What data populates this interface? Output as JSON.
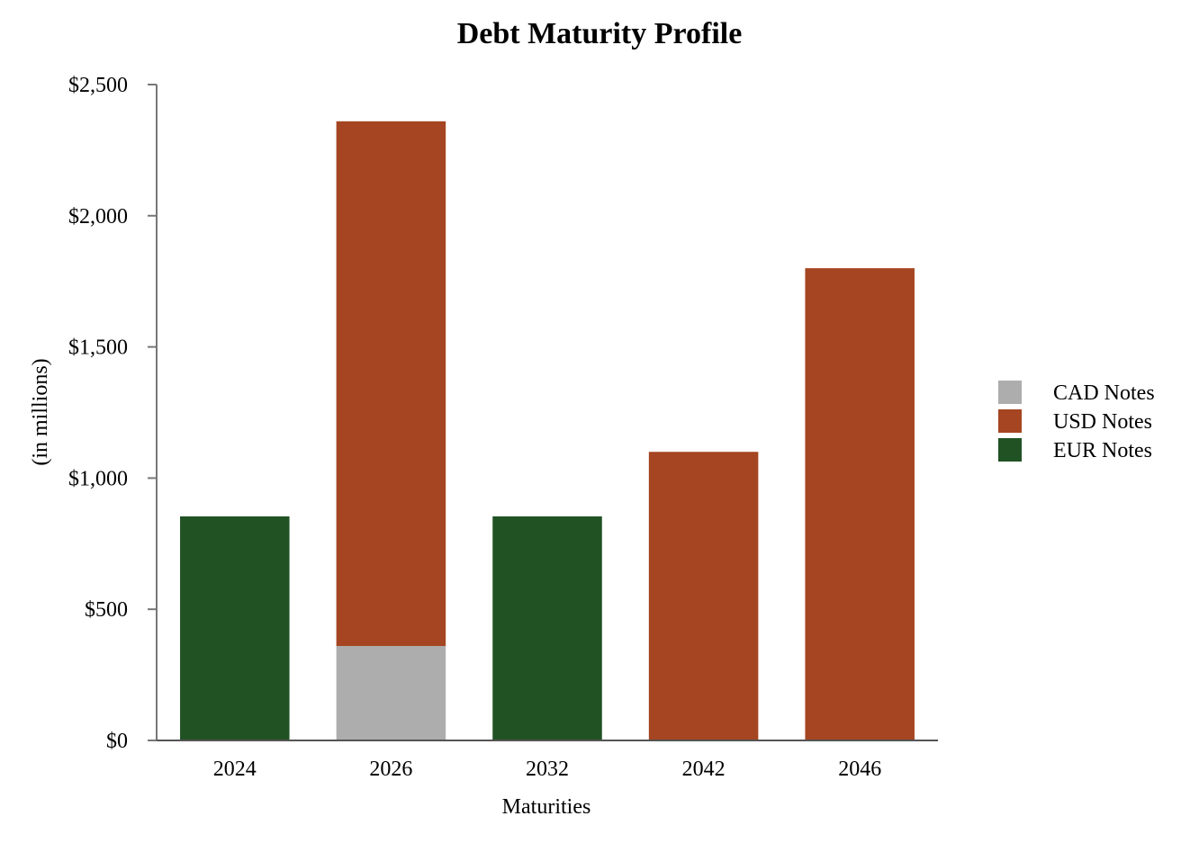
{
  "chart_data": {
    "type": "bar",
    "stacked": true,
    "title": "Debt Maturity Profile",
    "xlabel": "Maturities",
    "ylabel": "(in millions)",
    "ylim": [
      0,
      2500
    ],
    "yticks": [
      0,
      500,
      1000,
      1500,
      2000,
      2500
    ],
    "ytick_labels": [
      "$0",
      "$500",
      "$1,000",
      "$1,500",
      "$2,000",
      "$2,500"
    ],
    "categories": [
      "2024",
      "2026",
      "2032",
      "2042",
      "2046"
    ],
    "series": [
      {
        "name": "CAD Notes",
        "color": "#adadad",
        "values": [
          0,
          360,
          0,
          0,
          0
        ]
      },
      {
        "name": "USD Notes",
        "color": "#a54521",
        "values": [
          0,
          2000,
          0,
          1100,
          1800
        ]
      },
      {
        "name": "EUR Notes",
        "color": "#215224",
        "values": [
          854,
          0,
          854,
          0,
          0
        ]
      }
    ],
    "stack_order": [
      "EUR Notes",
      "CAD Notes",
      "USD Notes"
    ],
    "grid": false,
    "legend_position": "right"
  }
}
